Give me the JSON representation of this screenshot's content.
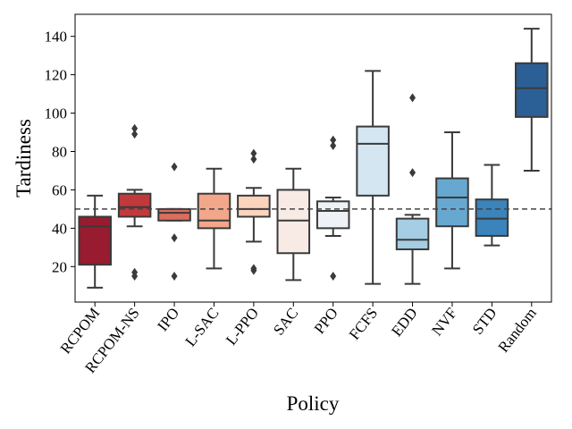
{
  "chart_data": {
    "type": "boxplot",
    "title": "",
    "xlabel": "Policy",
    "ylabel": "Tardiness",
    "ylim": [
      1.5,
      151.5
    ],
    "yticks": [
      20,
      40,
      60,
      80,
      100,
      120,
      140
    ],
    "reference_line": {
      "value": 50,
      "style": "dashed"
    },
    "grid": false,
    "legend": "none",
    "categories": [
      "RCPOM",
      "RCPOM-NS",
      "IPO",
      "L-SAC",
      "L-PPO",
      "SAC",
      "PPO",
      "FCFS",
      "EDD",
      "NVF",
      "STD",
      "Random"
    ],
    "boxes": [
      {
        "name": "RCPOM",
        "whisker_low": 9,
        "q1": 21,
        "median": 41,
        "q3": 46,
        "whisker_high": 57,
        "outliers": [],
        "color": "#981b30"
      },
      {
        "name": "RCPOM-NS",
        "whisker_low": 41,
        "q1": 46,
        "median": 51,
        "q3": 58,
        "whisker_high": 60,
        "outliers": [
          92,
          89,
          17,
          15
        ],
        "color": "#c2393c"
      },
      {
        "name": "IPO",
        "whisker_low": 44,
        "q1": 44,
        "median": 48,
        "q3": 50,
        "whisker_high": 50,
        "outliers": [
          72,
          35,
          15
        ],
        "color": "#dc6e5d"
      },
      {
        "name": "L-SAC",
        "whisker_low": 19,
        "q1": 40,
        "median": 44,
        "q3": 58,
        "whisker_high": 71,
        "outliers": [],
        "color": "#f2a68a"
      },
      {
        "name": "L-PPO",
        "whisker_low": 33,
        "q1": 46,
        "median": 50,
        "q3": 57,
        "whisker_high": 61,
        "outliers": [
          79,
          76,
          19,
          18
        ],
        "color": "#fcd3bd"
      },
      {
        "name": "SAC",
        "whisker_low": 13,
        "q1": 27,
        "median": 44,
        "q3": 60,
        "whisker_high": 71,
        "outliers": [],
        "color": "#f8ebe5"
      },
      {
        "name": "PPO",
        "whisker_low": 36,
        "q1": 40,
        "median": 49,
        "q3": 54,
        "whisker_high": 56,
        "outliers": [
          86,
          83,
          15
        ],
        "color": "#eef1f5"
      },
      {
        "name": "FCFS",
        "whisker_low": 11,
        "q1": 57,
        "median": 84,
        "q3": 93,
        "whisker_high": 122,
        "outliers": [],
        "color": "#d4e6f1"
      },
      {
        "name": "EDD",
        "whisker_low": 11,
        "q1": 29,
        "median": 34,
        "q3": 45,
        "whisker_high": 47,
        "outliers": [
          108,
          69
        ],
        "color": "#a5cde3"
      },
      {
        "name": "NVF",
        "whisker_low": 19,
        "q1": 41,
        "median": 56,
        "q3": 66,
        "whisker_high": 90,
        "outliers": [],
        "color": "#67a8d0"
      },
      {
        "name": "STD",
        "whisker_low": 31,
        "q1": 36,
        "median": 45,
        "q3": 55,
        "whisker_high": 73,
        "outliers": [],
        "color": "#3a83bb"
      },
      {
        "name": "Random",
        "whisker_low": 70,
        "q1": 98,
        "median": 113,
        "q3": 126,
        "whisker_high": 144,
        "outliers": [],
        "color": "#2a6096"
      }
    ]
  }
}
